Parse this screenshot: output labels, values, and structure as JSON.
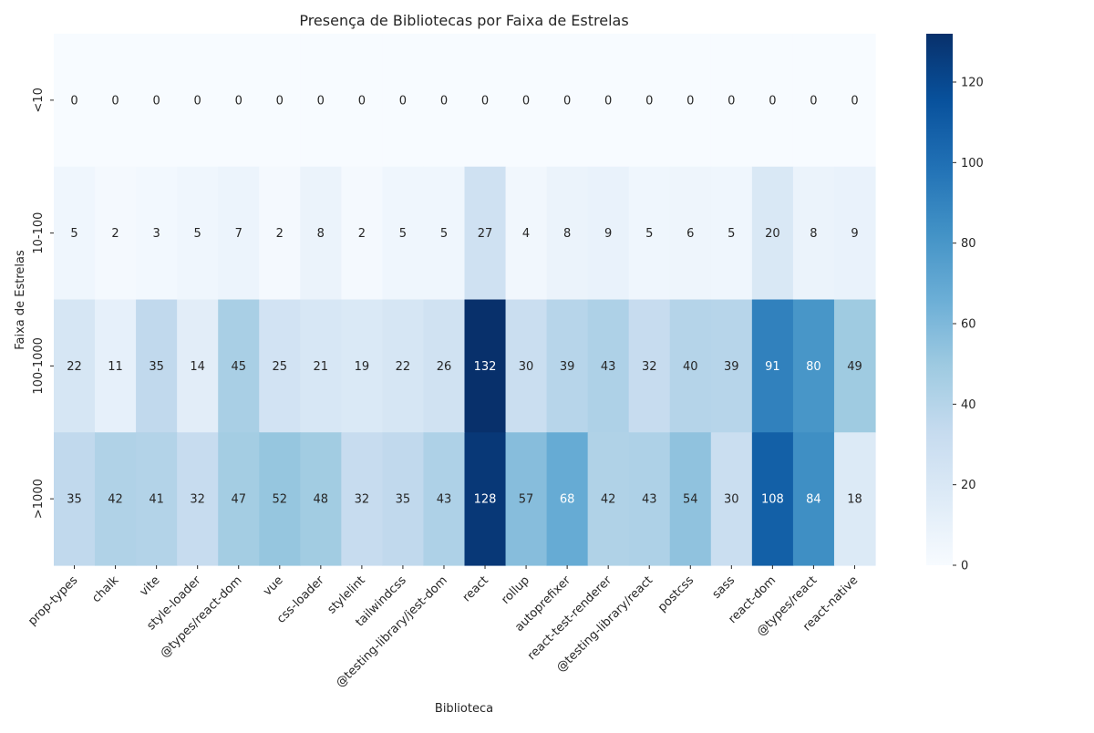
{
  "chart_data": {
    "type": "heatmap",
    "title": "Presença de Bibliotecas por Faixa de Estrelas",
    "xlabel": "Biblioteca",
    "ylabel": "Faixa de Estrelas",
    "x_categories": [
      "prop-types",
      "chalk",
      "vite",
      "style-loader",
      "@types/react-dom",
      "vue",
      "css-loader",
      "stylelint",
      "tailwindcss",
      "@testing-library/jest-dom",
      "react",
      "rollup",
      "autoprefixer",
      "react-test-renderer",
      "@testing-library/react",
      "postcss",
      "sass",
      "react-dom",
      "@types/react",
      "react-native"
    ],
    "y_categories": [
      "<10",
      "10-100",
      "100-1000",
      ">1000"
    ],
    "values": [
      [
        0,
        0,
        0,
        0,
        0,
        0,
        0,
        0,
        0,
        0,
        0,
        0,
        0,
        0,
        0,
        0,
        0,
        0,
        0,
        0
      ],
      [
        5,
        2,
        3,
        5,
        7,
        2,
        8,
        2,
        5,
        5,
        27,
        4,
        8,
        9,
        5,
        6,
        5,
        20,
        8,
        9
      ],
      [
        22,
        11,
        35,
        14,
        45,
        25,
        21,
        19,
        22,
        26,
        132,
        30,
        39,
        43,
        32,
        40,
        39,
        91,
        80,
        49
      ],
      [
        35,
        42,
        41,
        32,
        47,
        52,
        48,
        32,
        35,
        43,
        128,
        57,
        68,
        42,
        43,
        54,
        30,
        108,
        84,
        18
      ]
    ],
    "colormap": "Blues",
    "colorbar": {
      "range": [
        0,
        132
      ],
      "ticks": [
        0,
        20,
        40,
        60,
        80,
        100,
        120
      ]
    },
    "annotations": true,
    "grid": false
  }
}
